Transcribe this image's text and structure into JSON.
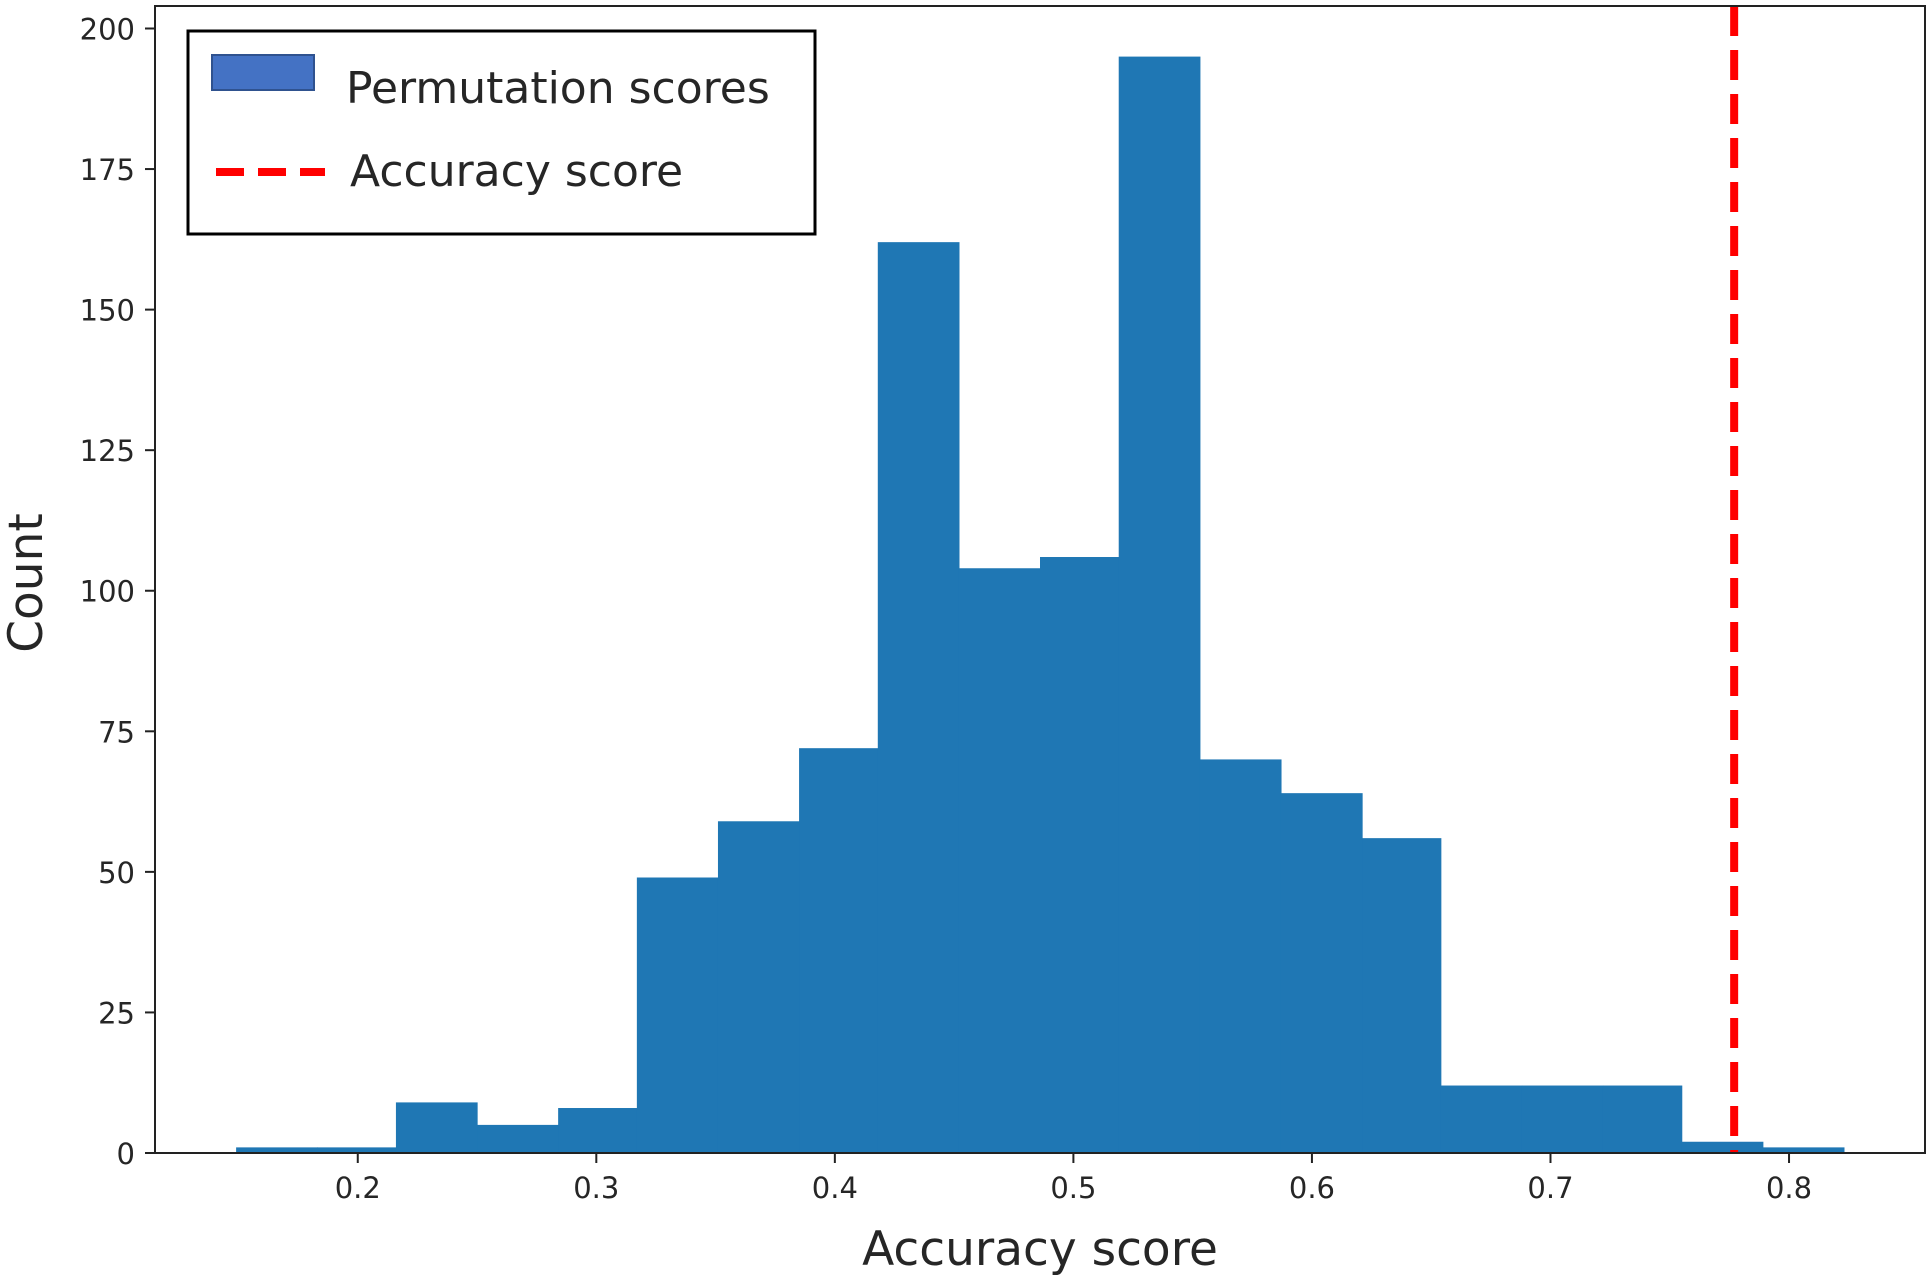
{
  "chart_data": {
    "type": "bar",
    "subtype": "histogram",
    "xlabel": "Accuracy score",
    "ylabel": "Count",
    "xlim": [
      0.115,
      0.857
    ],
    "ylim": [
      0,
      204
    ],
    "xticks": [
      0.2,
      0.3,
      0.4,
      0.5,
      0.6,
      0.7,
      0.8
    ],
    "xtick_labels": [
      "0.2",
      "0.3",
      "0.4",
      "0.5",
      "0.6",
      "0.7",
      "0.8"
    ],
    "yticks": [
      0,
      25,
      50,
      75,
      100,
      125,
      150,
      175,
      200
    ],
    "ytick_labels": [
      "0",
      "25",
      "50",
      "75",
      "100",
      "125",
      "150",
      "175",
      "200"
    ],
    "grid": false,
    "legend_position": "top-left",
    "series": [
      {
        "name": "Permutation scores",
        "kind": "histogram",
        "color": "#1f77b4",
        "legend_swatch_color": "#4472c4",
        "bin_edges": [
          0.149,
          0.183,
          0.216,
          0.25,
          0.284,
          0.317,
          0.351,
          0.385,
          0.418,
          0.452,
          0.486,
          0.519,
          0.553,
          0.587,
          0.621,
          0.654,
          0.688,
          0.722,
          0.755,
          0.789,
          0.823
        ],
        "counts": [
          1,
          1,
          9,
          5,
          8,
          49,
          59,
          72,
          162,
          104,
          106,
          195,
          70,
          64,
          56,
          12,
          12,
          12,
          2,
          1
        ]
      },
      {
        "name": "Accuracy score",
        "kind": "vline",
        "color": "#ff0000",
        "linestyle": "dashed",
        "x": 0.777
      }
    ]
  }
}
